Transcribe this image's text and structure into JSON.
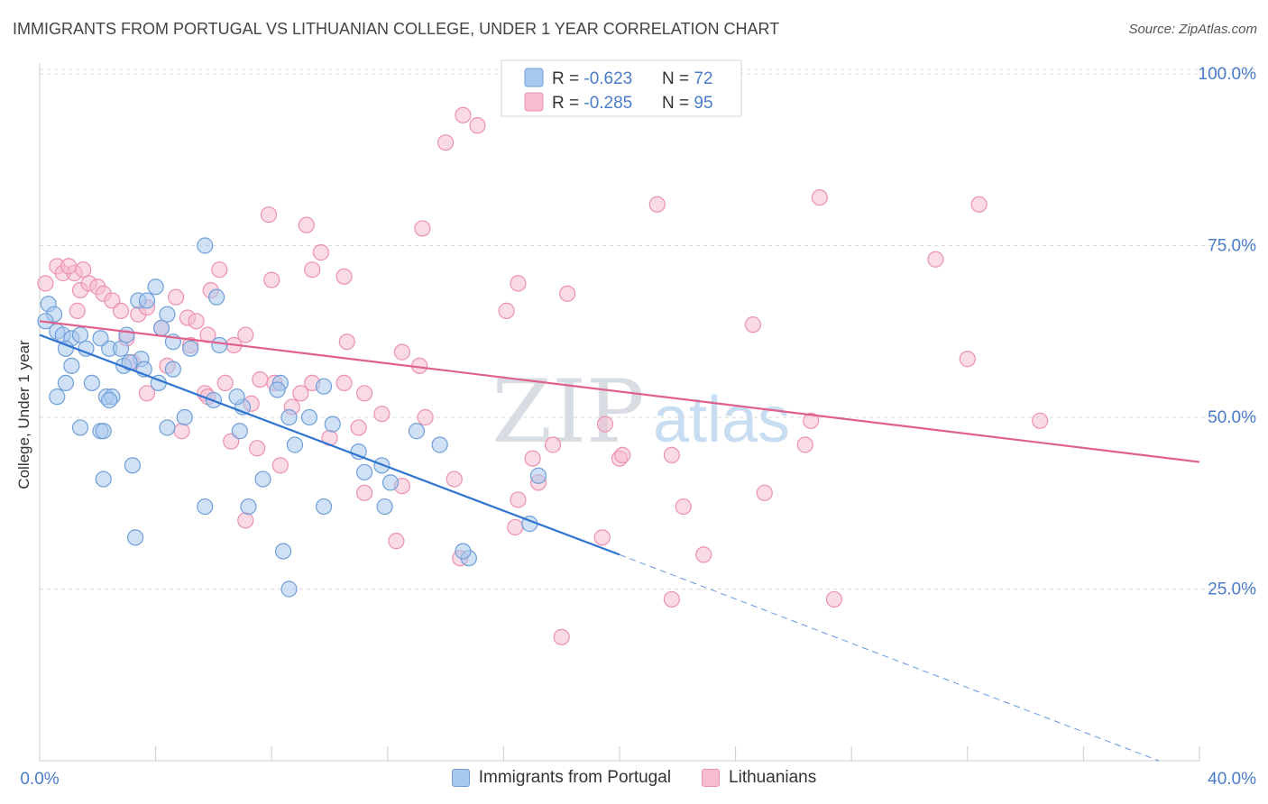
{
  "title": "IMMIGRANTS FROM PORTUGAL VS LITHUANIAN COLLEGE, UNDER 1 YEAR CORRELATION CHART",
  "source": "Source: ZipAtlas.com",
  "watermark": {
    "zip": "ZIP",
    "atlas": "atlas"
  },
  "colors": {
    "blue_fill": "#a9c8ef",
    "blue_stroke": "#6f9fd8",
    "blue_line": "#2f74d0",
    "pink_fill": "#f6bcd0",
    "pink_stroke": "#ec91b0",
    "pink_line": "#e0608c",
    "axis_text": "#4a7cc9",
    "grid": "#d9d9d9"
  },
  "legend": {
    "blue": {
      "r_label": "R = ",
      "r_value": "-0.623",
      "n_label": "N = ",
      "n_value": "72"
    },
    "pink": {
      "r_label": "R = ",
      "r_value": "-0.285",
      "n_label": "N = ",
      "n_value": "95"
    }
  },
  "chart_data": {
    "type": "scatter",
    "title": "IMMIGRANTS FROM PORTUGAL VS LITHUANIAN COLLEGE, UNDER 1 YEAR CORRELATION CHART",
    "xlabel": "",
    "ylabel": "College, Under 1 year",
    "xlim": [
      0,
      40
    ],
    "ylim": [
      0,
      104
    ],
    "x_tick_labels": [
      "0.0%",
      "40.0%"
    ],
    "y_ticks": [
      25,
      50,
      75,
      100
    ],
    "y_tick_labels": [
      "25.0%",
      "50.0%",
      "75.0%",
      "100.0%"
    ],
    "series": [
      {
        "name": "Immigrants from Portugal",
        "color": "blue",
        "R": -0.623,
        "N": 72,
        "trend": {
          "x0": 0,
          "y0": 62,
          "x1": 20,
          "y1": 30,
          "dash_to_x": 40,
          "dash_to_y": -2
        },
        "points": [
          [
            0.3,
            66.5
          ],
          [
            0.5,
            65
          ],
          [
            0.2,
            64
          ],
          [
            0.6,
            62.5
          ],
          [
            0.8,
            62
          ],
          [
            1.1,
            61.5
          ],
          [
            1.4,
            62
          ],
          [
            1.6,
            60
          ],
          [
            2.4,
            60
          ],
          [
            2.8,
            60
          ],
          [
            3.0,
            62
          ],
          [
            3.5,
            58.5
          ],
          [
            1.1,
            57.5
          ],
          [
            2.9,
            57.5
          ],
          [
            1.8,
            55
          ],
          [
            0.9,
            55
          ],
          [
            4.1,
            55
          ],
          [
            2.3,
            53
          ],
          [
            2.5,
            53
          ],
          [
            0.6,
            53
          ],
          [
            3.1,
            58
          ],
          [
            4.6,
            57
          ],
          [
            3.4,
            67
          ],
          [
            3.7,
            67
          ],
          [
            4.4,
            65
          ],
          [
            4.0,
            69
          ],
          [
            6.1,
            67.5
          ],
          [
            4.2,
            63
          ],
          [
            4.6,
            61
          ],
          [
            5.0,
            50
          ],
          [
            3.6,
            57
          ],
          [
            4.4,
            48.5
          ],
          [
            1.4,
            48.5
          ],
          [
            2.1,
            48
          ],
          [
            2.2,
            48
          ],
          [
            5.2,
            60
          ],
          [
            6.0,
            52.5
          ],
          [
            7.0,
            51.5
          ],
          [
            6.9,
            48
          ],
          [
            5.7,
            75
          ],
          [
            6.8,
            53
          ],
          [
            8.3,
            55
          ],
          [
            8.2,
            54
          ],
          [
            8.6,
            50
          ],
          [
            9.3,
            50
          ],
          [
            10.1,
            49
          ],
          [
            11.0,
            45
          ],
          [
            11.2,
            42
          ],
          [
            11.8,
            43
          ],
          [
            12.1,
            40.5
          ],
          [
            8.8,
            46
          ],
          [
            9.8,
            54.5
          ],
          [
            13.0,
            48
          ],
          [
            13.8,
            46
          ],
          [
            3.2,
            43
          ],
          [
            2.2,
            41
          ],
          [
            7.7,
            41
          ],
          [
            9.8,
            37
          ],
          [
            5.7,
            37
          ],
          [
            7.2,
            37
          ],
          [
            11.9,
            37
          ],
          [
            17.2,
            41.5
          ],
          [
            16.9,
            34.5
          ],
          [
            14.8,
            29.5
          ],
          [
            14.6,
            30.5
          ],
          [
            8.4,
            30.5
          ],
          [
            3.3,
            32.5
          ],
          [
            8.6,
            25
          ],
          [
            2.1,
            61.5
          ],
          [
            0.9,
            60
          ],
          [
            2.4,
            52.5
          ],
          [
            6.2,
            60.5
          ]
        ]
      },
      {
        "name": "Lithuanians",
        "color": "pink",
        "R": -0.285,
        "N": 95,
        "trend": {
          "x0": 0,
          "y0": 64,
          "x1": 40,
          "y1": 43.5
        },
        "points": [
          [
            0.2,
            69.5
          ],
          [
            0.6,
            72
          ],
          [
            0.8,
            71
          ],
          [
            1.2,
            71
          ],
          [
            1.4,
            68.5
          ],
          [
            1.7,
            69.5
          ],
          [
            2.0,
            69
          ],
          [
            2.2,
            68
          ],
          [
            2.5,
            67
          ],
          [
            2.8,
            65.5
          ],
          [
            1.0,
            72
          ],
          [
            1.5,
            71.5
          ],
          [
            3.0,
            61.5
          ],
          [
            3.4,
            65
          ],
          [
            3.7,
            66
          ],
          [
            4.2,
            63
          ],
          [
            4.7,
            67.5
          ],
          [
            5.1,
            64.5
          ],
          [
            5.4,
            64
          ],
          [
            5.8,
            62
          ],
          [
            5.9,
            68.5
          ],
          [
            6.2,
            71.5
          ],
          [
            6.7,
            60.5
          ],
          [
            7.1,
            62
          ],
          [
            3.2,
            58
          ],
          [
            3.7,
            53.5
          ],
          [
            4.4,
            57.5
          ],
          [
            5.2,
            60.5
          ],
          [
            5.7,
            53.5
          ],
          [
            6.4,
            55
          ],
          [
            7.3,
            52
          ],
          [
            7.6,
            55.5
          ],
          [
            8.1,
            55
          ],
          [
            8.7,
            51.5
          ],
          [
            9.0,
            53.5
          ],
          [
            9.4,
            55
          ],
          [
            10.6,
            61
          ],
          [
            10.5,
            55
          ],
          [
            11.2,
            53.5
          ],
          [
            12.5,
            59.5
          ],
          [
            11.0,
            48.5
          ],
          [
            11.8,
            50.5
          ],
          [
            13.1,
            57.5
          ],
          [
            13.3,
            50
          ],
          [
            4.9,
            48
          ],
          [
            6.6,
            46.5
          ],
          [
            7.5,
            45.5
          ],
          [
            8.3,
            43
          ],
          [
            10.0,
            47
          ],
          [
            11.2,
            39
          ],
          [
            12.5,
            40
          ],
          [
            14.3,
            41
          ],
          [
            17.0,
            44
          ],
          [
            17.7,
            46
          ],
          [
            19.5,
            49
          ],
          [
            20.0,
            44
          ],
          [
            20.1,
            44.5
          ],
          [
            21.8,
            44.5
          ],
          [
            19.4,
            32.5
          ],
          [
            22.2,
            37
          ],
          [
            22.9,
            30
          ],
          [
            21.8,
            23.5
          ],
          [
            18.0,
            18
          ],
          [
            27.4,
            23.5
          ],
          [
            25.0,
            39
          ],
          [
            17.2,
            40.5
          ],
          [
            16.5,
            38
          ],
          [
            16.4,
            34
          ],
          [
            12.3,
            32
          ],
          [
            14.5,
            29.5
          ],
          [
            7.9,
            79.5
          ],
          [
            9.2,
            78
          ],
          [
            13.2,
            77.5
          ],
          [
            14.0,
            90
          ],
          [
            14.6,
            94
          ],
          [
            15.1,
            92.5
          ],
          [
            10.5,
            70.5
          ],
          [
            9.4,
            71.5
          ],
          [
            8.0,
            70
          ],
          [
            9.7,
            74
          ],
          [
            16.1,
            65.5
          ],
          [
            16.5,
            69.5
          ],
          [
            18.2,
            68
          ],
          [
            21.3,
            81
          ],
          [
            24.6,
            63.5
          ],
          [
            26.9,
            82
          ],
          [
            30.9,
            73
          ],
          [
            32.4,
            81
          ],
          [
            32.0,
            58.5
          ],
          [
            34.5,
            49.5
          ],
          [
            26.6,
            49.5
          ],
          [
            26.4,
            46
          ],
          [
            7.1,
            35
          ],
          [
            5.8,
            53
          ],
          [
            1.3,
            65.5
          ]
        ]
      }
    ]
  },
  "bottom_legend": {
    "blue_label": "Immigrants from Portugal",
    "pink_label": "Lithuanians"
  }
}
